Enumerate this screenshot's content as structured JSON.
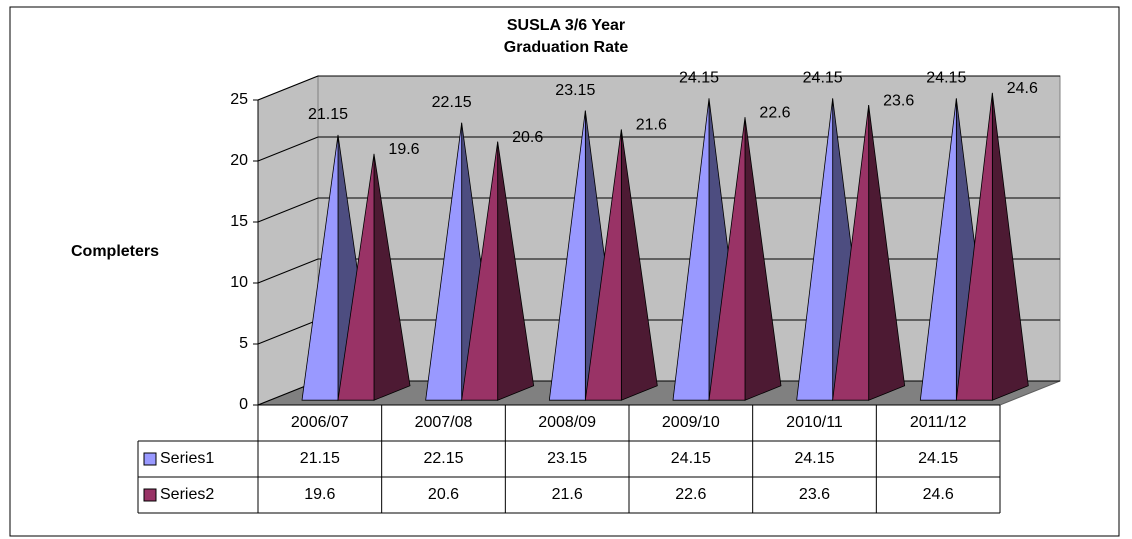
{
  "chart_data": {
    "type": "bar3d_pyramid",
    "title": [
      "SUSLA 3/6 Year",
      "Graduation Rate"
    ],
    "y_label": "Completers",
    "categories": [
      "2006/07",
      "2007/08",
      "2008/09",
      "2009/10",
      "2010/11",
      "2011/12"
    ],
    "series": [
      {
        "name": "Series1",
        "color": "#9999ff",
        "side_color": "#4d4d80",
        "values": [
          21.15,
          22.15,
          23.15,
          24.15,
          24.15,
          24.15
        ]
      },
      {
        "name": "Series2",
        "color": "#993366",
        "side_color": "#4d1a33",
        "values": [
          19.6,
          20.6,
          21.6,
          22.6,
          23.6,
          24.6
        ]
      }
    ],
    "ylim": [
      0,
      25
    ],
    "yticks": [
      0,
      5,
      10,
      15,
      20,
      25
    ],
    "grid": true,
    "data_table": true
  }
}
